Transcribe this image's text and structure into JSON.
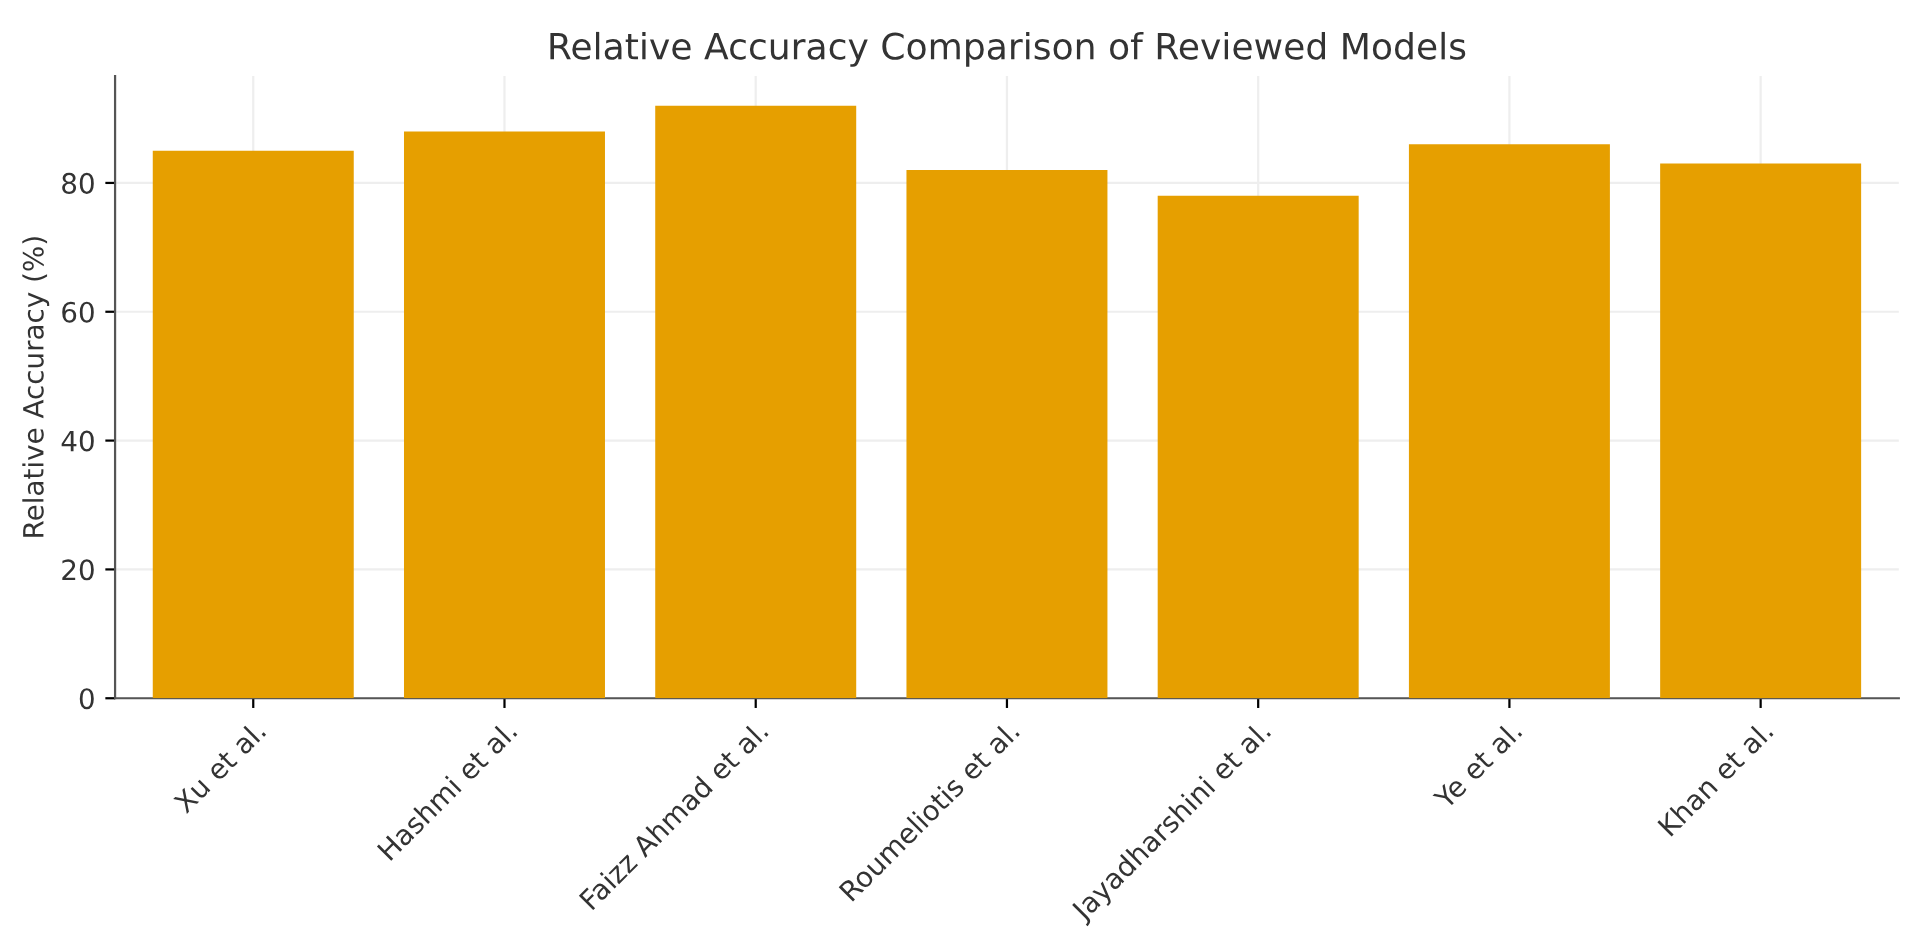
{
  "chart_data": {
    "type": "bar",
    "title": "Relative Accuracy Comparison of Reviewed Models",
    "ylabel": "Relative Accuracy (%)",
    "categories": [
      "Xu et al.",
      "Hashmi et al.",
      "Faizz Ahmad et al.",
      "Roumeliotis et al.",
      "Jayadharshini et al.",
      "Ye et al.",
      "Khan et al."
    ],
    "values": [
      85,
      88,
      92,
      82,
      78,
      86,
      83
    ],
    "color": "#e69f00",
    "ylim": [
      0,
      96.6
    ],
    "yticks": [
      0,
      20,
      40,
      60,
      80
    ],
    "grid": true
  }
}
